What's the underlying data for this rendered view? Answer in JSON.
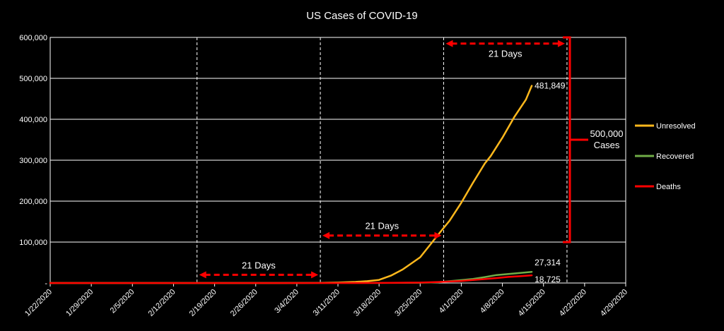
{
  "chart_data": {
    "type": "line",
    "title": "US Cases of COVID-19",
    "xlabel": "",
    "ylabel": "",
    "x_ticks": [
      "1/22/2020",
      "1/29/2020",
      "2/5/2020",
      "2/12/2020",
      "2/19/2020",
      "2/26/2020",
      "3/4/2020",
      "3/11/2020",
      "3/18/2020",
      "3/25/2020",
      "4/1/2020",
      "4/8/2020",
      "4/15/2020",
      "4/22/2020",
      "4/29/2020"
    ],
    "y_ticks": [
      "-",
      "100,000",
      "200,000",
      "300,000",
      "400,000",
      "500,000",
      "600,000"
    ],
    "ylim": [
      0,
      600000
    ],
    "xlim_days": [
      0,
      98
    ],
    "grid": "horizontal",
    "legend_position": "right",
    "series": [
      {
        "name": "Unresolved",
        "color": "#FFB81C",
        "points": [
          {
            "x": "1/22/2020",
            "y": 1
          },
          {
            "x": "1/29/2020",
            "y": 5
          },
          {
            "x": "2/5/2020",
            "y": 11
          },
          {
            "x": "2/12/2020",
            "y": 13
          },
          {
            "x": "2/19/2020",
            "y": 13
          },
          {
            "x": "2/26/2020",
            "y": 50
          },
          {
            "x": "3/1/2020",
            "y": 70
          },
          {
            "x": "3/4/2020",
            "y": 140
          },
          {
            "x": "3/8/2020",
            "y": 480
          },
          {
            "x": "3/11/2020",
            "y": 1200
          },
          {
            "x": "3/14/2020",
            "y": 2700
          },
          {
            "x": "3/16/2020",
            "y": 4400
          },
          {
            "x": "3/18/2020",
            "y": 7500
          },
          {
            "x": "3/20/2020",
            "y": 18000
          },
          {
            "x": "3/22/2020",
            "y": 33000
          },
          {
            "x": "3/23/2020",
            "y": 43000
          },
          {
            "x": "3/25/2020",
            "y": 63000
          },
          {
            "x": "3/27/2020",
            "y": 99000
          },
          {
            "x": "3/28/2020",
            "y": 117000
          },
          {
            "x": "3/30/2020",
            "y": 152000
          },
          {
            "x": "4/1/2020",
            "y": 196000
          },
          {
            "x": "4/3/2020",
            "y": 245000
          },
          {
            "x": "4/5/2020",
            "y": 292000
          },
          {
            "x": "4/6/2020",
            "y": 310000
          },
          {
            "x": "4/8/2020",
            "y": 355000
          },
          {
            "x": "4/10/2020",
            "y": 405000
          },
          {
            "x": "4/12/2020",
            "y": 448000
          },
          {
            "x": "4/13/2020",
            "y": 481849
          }
        ]
      },
      {
        "name": "Recovered",
        "color": "#70AD47",
        "points": [
          {
            "x": "1/22/2020",
            "y": 0
          },
          {
            "x": "2/26/2020",
            "y": 7
          },
          {
            "x": "3/18/2020",
            "y": 100
          },
          {
            "x": "3/25/2020",
            "y": 700
          },
          {
            "x": "3/28/2020",
            "y": 1800
          },
          {
            "x": "4/1/2020",
            "y": 7000
          },
          {
            "x": "4/3/2020",
            "y": 10000
          },
          {
            "x": "4/5/2020",
            "y": 14500
          },
          {
            "x": "4/7/2020",
            "y": 19500
          },
          {
            "x": "4/9/2020",
            "y": 22000
          },
          {
            "x": "4/11/2020",
            "y": 24500
          },
          {
            "x": "4/13/2020",
            "y": 27314
          }
        ]
      },
      {
        "name": "Deaths",
        "color": "#FF0000",
        "points": [
          {
            "x": "1/22/2020",
            "y": 0
          },
          {
            "x": "2/29/2020",
            "y": 1
          },
          {
            "x": "3/11/2020",
            "y": 40
          },
          {
            "x": "3/18/2020",
            "y": 150
          },
          {
            "x": "3/25/2020",
            "y": 1000
          },
          {
            "x": "3/28/2020",
            "y": 2500
          },
          {
            "x": "4/1/2020",
            "y": 5000
          },
          {
            "x": "4/3/2020",
            "y": 7400
          },
          {
            "x": "4/5/2020",
            "y": 9600
          },
          {
            "x": "4/7/2020",
            "y": 12000
          },
          {
            "x": "4/9/2020",
            "y": 14800
          },
          {
            "x": "4/11/2020",
            "y": 16500
          },
          {
            "x": "4/13/2020",
            "y": 18725
          }
        ]
      }
    ],
    "end_labels": [
      {
        "series": "Unresolved",
        "text": "481,849"
      },
      {
        "series": "Recovered",
        "text": "27,314"
      },
      {
        "series": "Deaths",
        "text": "18,725"
      }
    ],
    "vertical_markers": [
      "2/16/2020",
      "3/8/2020",
      "3/29/2020",
      "4/19/2020"
    ],
    "annotations": [
      {
        "text": "21 Days",
        "from": "2/16/2020",
        "to": "3/8/2020",
        "y": 20000
      },
      {
        "text": "21 Days",
        "from": "3/8/2020",
        "to": "3/29/2020",
        "y": 116000
      },
      {
        "text": "21 Days",
        "from": "3/29/2020",
        "to": "4/19/2020",
        "y": 585000
      }
    ],
    "brace": {
      "label_lines": [
        "500,000",
        "Cases"
      ],
      "from": 100000,
      "to": 600000
    },
    "colors": {
      "background": "#000000",
      "axis": "#ffffff",
      "annotation": "#FF0000"
    }
  }
}
